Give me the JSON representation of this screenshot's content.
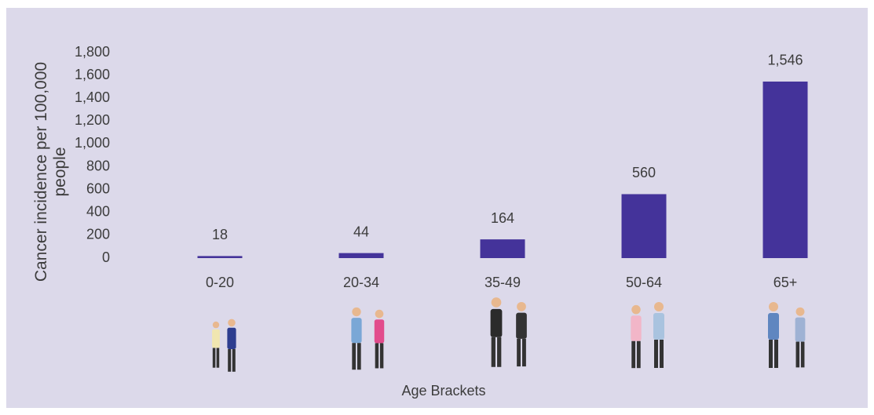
{
  "chart_data": {
    "type": "bar",
    "ylabel": "Cancer incidence per 100,000 people",
    "xlabel": "Age Brackets",
    "categories": [
      "0-20",
      "20-34",
      "35-49",
      "50-64",
      "65+"
    ],
    "values": [
      18,
      44,
      164,
      560,
      1546
    ],
    "value_labels": [
      "18",
      "44",
      "164",
      "560",
      "1,546"
    ],
    "color": "#44339a",
    "ylim": [
      0,
      1800
    ],
    "yticks": [
      0,
      200,
      400,
      600,
      800,
      {
        "value": 1000,
        "label": "1,000"
      },
      {
        "value": 1200,
        "label": "1,200"
      },
      {
        "value": 1400,
        "label": "1,400"
      },
      {
        "value": 1600,
        "label": "1,600"
      },
      {
        "value": 1800,
        "label": "1,800"
      }
    ],
    "grid": false
  }
}
